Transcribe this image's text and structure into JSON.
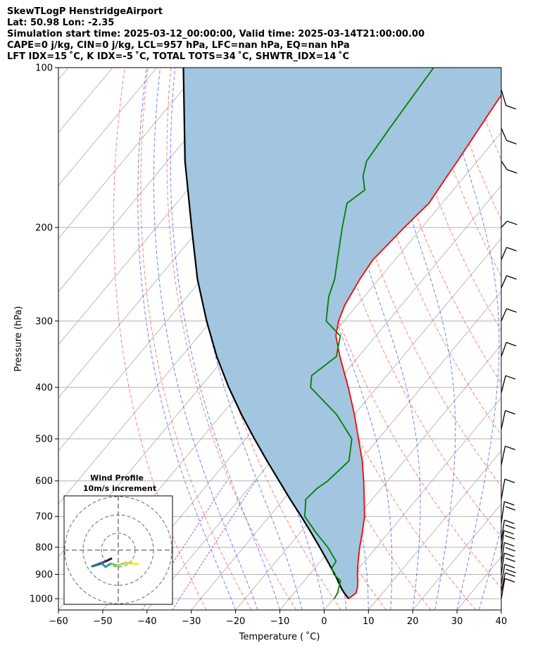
{
  "header": {
    "line1": "SkewTLogP HenstridgeAirport",
    "line2": "Lat: 50.98   Lon: -2.35",
    "line3": "Simulation start time: 2025-03-12_00:00:00, Valid time: 2025-03-14T21:00:00.00",
    "line4": "CAPE=0 j/kg, CIN=0 j/kg, LCL=957 hPa, LFC=nan hPa, EQ=nan hPa",
    "line5": "LFT IDX=15 ˚C, K IDX=-5 ˚C, TOTAL TOTS=34 ˚C, SHWTR_IDX=14 ˚C"
  },
  "colors": {
    "temperature": "#ff0000",
    "dewpoint": "#008000",
    "parcel": "#000000",
    "cape_fill": "#a2c5e0",
    "dry_adiabats": "#ff5555",
    "moist_adiabats": "#4455ff",
    "isotherms": "#aaaaaa",
    "mixing_ratio": "#9933cc"
  },
  "chart_data": {
    "type": "line",
    "subtype": "skew-t log-p",
    "xlabel": "Temperature ( ˚C)",
    "ylabel": "Pressure (hPa)",
    "xlim": [
      -60,
      40
    ],
    "ylim": [
      1050,
      100
    ],
    "y_scale": "log",
    "grid": true,
    "x_ticks": [
      "−60",
      "−50",
      "−40",
      "−30",
      "−20",
      "−10",
      "0",
      "10",
      "20",
      "30",
      "40"
    ],
    "y_ticks": [
      "100",
      "200",
      "300",
      "400",
      "500",
      "600",
      "700",
      "800",
      "900",
      "1000"
    ],
    "series": [
      {
        "key": "temperature",
        "p": [
          1000,
          975,
          950,
          925,
          900,
          850,
          800,
          750,
          700,
          650,
          600,
          550,
          500,
          450,
          400,
          350,
          320,
          300,
          280,
          250,
          230,
          200,
          180,
          160,
          150,
          120,
          100
        ],
        "t": [
          3.4,
          4.0,
          3.2,
          2.1,
          0.8,
          -1.5,
          -3.8,
          -6.0,
          -8.5,
          -11.8,
          -15.4,
          -19.5,
          -24.5,
          -30.0,
          -36.5,
          -44.2,
          -49.0,
          -51.2,
          -52.8,
          -54.3,
          -55.0,
          -54.0,
          -53.0,
          -54.0,
          -54.5,
          -56.5,
          -58.0
        ]
      },
      {
        "key": "dewpoint",
        "p": [
          1000,
          975,
          950,
          925,
          900,
          875,
          850,
          800,
          750,
          700,
          650,
          620,
          600,
          550,
          500,
          450,
          400,
          380,
          350,
          320,
          300,
          270,
          250,
          230,
          200,
          180,
          170,
          160,
          150,
          130,
          100
        ],
        "t": [
          0.2,
          -0.2,
          -1.0,
          -1.8,
          -4.5,
          -6.2,
          -6.5,
          -11.0,
          -16.5,
          -22.0,
          -25.0,
          -24.5,
          -23.5,
          -22.5,
          -26.0,
          -34.0,
          -45.0,
          -47.0,
          -45.0,
          -48.0,
          -54.0,
          -58.0,
          -60.0,
          -63.0,
          -68.0,
          -71.5,
          -70.0,
          -73.0,
          -75.0,
          -76.0,
          -77.5
        ]
      },
      {
        "key": "parcel",
        "p": [
          1000,
          975,
          957,
          925,
          900,
          850,
          800,
          750,
          700,
          650,
          600,
          550,
          500,
          450,
          400,
          350,
          300,
          250,
          200,
          150,
          100
        ],
        "t": [
          3.4,
          1.3,
          -0.1,
          -2.4,
          -4.3,
          -8.4,
          -12.8,
          -17.6,
          -22.8,
          -28.5,
          -34.5,
          -41.0,
          -48.0,
          -55.5,
          -63.5,
          -72.0,
          -81.0,
          -91.0,
          -102.0,
          -116.0,
          -134.0
        ]
      }
    ],
    "hodograph": {
      "title": "Wind Profile",
      "subtitle": "10m/s increment"
    }
  }
}
